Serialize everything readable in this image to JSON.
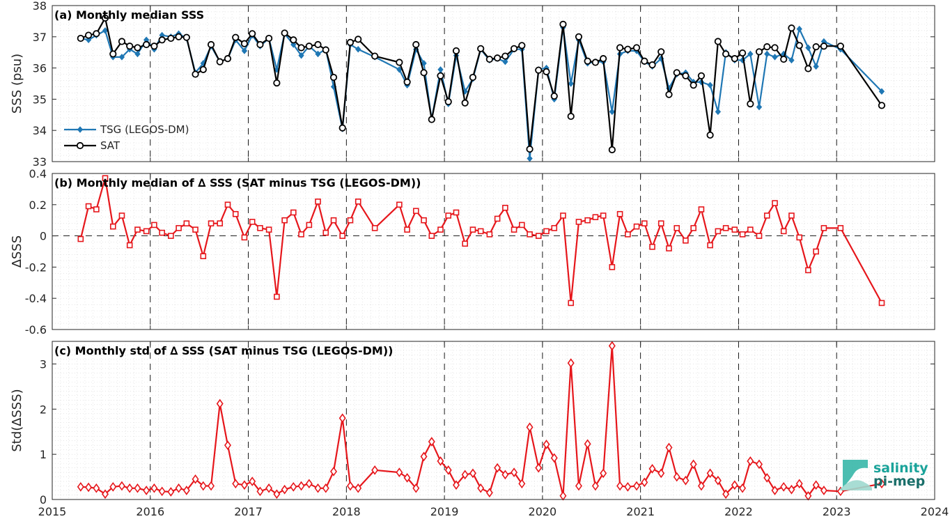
{
  "colors": {
    "tsg": "#1f77b4",
    "sat": "#000000",
    "delta": "#e6161b",
    "logo": "#1aa39a"
  },
  "x_ticks": [
    "2015",
    "2016",
    "2017",
    "2018",
    "2019",
    "2020",
    "2021",
    "2022",
    "2023",
    "2024"
  ],
  "logo": {
    "line1": "salinity",
    "line2": "pi-mep"
  },
  "chart_data": [
    {
      "type": "line",
      "title": "(a) Monthly median SSS",
      "ylabel": "SSS (psu)",
      "xlim": [
        2015,
        2024
      ],
      "ylim": [
        33,
        38
      ],
      "y_ticks": [
        "33",
        "34",
        "35",
        "36",
        "37",
        "38"
      ],
      "grid": true,
      "legend": "bottom-left",
      "x": [
        2015.29,
        2015.37,
        2015.45,
        2015.54,
        2015.62,
        2015.71,
        2015.79,
        2015.87,
        2015.96,
        2016.04,
        2016.12,
        2016.21,
        2016.29,
        2016.37,
        2016.46,
        2016.54,
        2016.62,
        2016.71,
        2016.79,
        2016.87,
        2016.96,
        2017.04,
        2017.12,
        2017.21,
        2017.29,
        2017.37,
        2017.46,
        2017.54,
        2017.62,
        2017.71,
        2017.79,
        2017.87,
        2017.96,
        2018.04,
        2018.12,
        2018.29,
        2018.54,
        2018.62,
        2018.71,
        2018.79,
        2018.87,
        2018.96,
        2019.04,
        2019.12,
        2019.21,
        2019.29,
        2019.37,
        2019.46,
        2019.54,
        2019.62,
        2019.71,
        2019.79,
        2019.87,
        2019.96,
        2020.04,
        2020.12,
        2020.21,
        2020.29,
        2020.37,
        2020.46,
        2020.54,
        2020.62,
        2020.71,
        2020.79,
        2020.87,
        2020.96,
        2021.04,
        2021.12,
        2021.21,
        2021.29,
        2021.37,
        2021.46,
        2021.54,
        2021.62,
        2021.71,
        2021.79,
        2021.87,
        2021.96,
        2022.04,
        2022.12,
        2022.21,
        2022.29,
        2022.37,
        2022.46,
        2022.54,
        2022.62,
        2022.71,
        2022.79,
        2022.87,
        2023.04,
        2023.46
      ],
      "series": [
        {
          "name": "TSG (LEGOS-DM)",
          "color_key": "tsg",
          "marker": "diamond",
          "values": [
            36.95,
            36.9,
            37.05,
            37.2,
            36.35,
            36.35,
            36.6,
            36.45,
            36.9,
            36.6,
            37.05,
            37.0,
            37.1,
            36.95,
            35.85,
            36.15,
            36.7,
            36.2,
            36.3,
            36.9,
            36.55,
            37.05,
            36.7,
            36.95,
            35.95,
            37.1,
            36.75,
            36.4,
            36.7,
            36.45,
            36.6,
            35.4,
            34.05,
            36.75,
            36.6,
            36.35,
            35.95,
            35.45,
            36.6,
            36.15,
            34.35,
            35.95,
            34.85,
            36.4,
            35.25,
            35.65,
            36.6,
            36.25,
            36.3,
            36.2,
            36.6,
            36.6,
            33.1,
            35.95,
            36.0,
            35.0,
            37.3,
            35.5,
            36.9,
            36.15,
            36.2,
            36.2,
            34.6,
            36.45,
            36.55,
            36.55,
            36.2,
            36.05,
            36.3,
            35.35,
            35.8,
            35.85,
            35.55,
            35.55,
            35.45,
            34.6,
            36.5,
            36.25,
            36.25,
            36.45,
            34.75,
            36.45,
            36.35,
            36.45,
            36.25,
            37.25,
            36.65,
            36.05,
            36.85,
            36.6,
            35.25
          ]
        },
        {
          "name": "SAT",
          "color_key": "sat",
          "marker": "circle",
          "values": [
            36.95,
            37.05,
            37.1,
            37.6,
            36.45,
            36.85,
            36.7,
            36.65,
            36.75,
            36.7,
            36.9,
            36.95,
            37.0,
            36.98,
            35.8,
            35.95,
            36.75,
            36.2,
            36.3,
            36.98,
            36.78,
            37.1,
            36.75,
            36.95,
            35.52,
            37.12,
            36.9,
            36.65,
            36.7,
            36.75,
            36.58,
            35.7,
            34.08,
            36.82,
            36.92,
            36.38,
            36.18,
            35.55,
            36.75,
            35.85,
            34.35,
            35.75,
            34.92,
            36.55,
            34.88,
            35.7,
            36.62,
            36.28,
            36.32,
            36.38,
            36.62,
            36.72,
            33.4,
            35.93,
            35.88,
            35.1,
            37.4,
            34.45,
            37.0,
            36.22,
            36.18,
            36.3,
            33.38,
            36.65,
            36.6,
            36.65,
            36.22,
            36.1,
            36.52,
            35.15,
            35.85,
            35.75,
            35.45,
            35.75,
            33.85,
            36.85,
            36.45,
            36.3,
            36.48,
            34.85,
            36.52,
            36.68,
            36.65,
            36.28,
            37.28,
            36.72,
            35.98,
            36.68,
            36.7,
            36.7,
            34.8
          ]
        }
      ]
    },
    {
      "type": "line",
      "title": "(b) Monthly median of ∆ SSS (SAT minus TSG (LEGOS-DM))",
      "ylabel": "∆SSS",
      "xlim": [
        2015,
        2024
      ],
      "ylim": [
        -0.6,
        0.4
      ],
      "y_ticks": [
        "-0.6",
        "-0.4",
        "-0.2",
        "0",
        "0.2",
        "0.4"
      ],
      "zero_line": true,
      "grid": true,
      "x": [
        2015.29,
        2015.37,
        2015.45,
        2015.54,
        2015.62,
        2015.71,
        2015.79,
        2015.87,
        2015.96,
        2016.04,
        2016.12,
        2016.21,
        2016.29,
        2016.37,
        2016.46,
        2016.54,
        2016.62,
        2016.71,
        2016.79,
        2016.87,
        2016.96,
        2017.04,
        2017.12,
        2017.21,
        2017.29,
        2017.37,
        2017.46,
        2017.54,
        2017.62,
        2017.71,
        2017.79,
        2017.87,
        2017.96,
        2018.04,
        2018.12,
        2018.29,
        2018.54,
        2018.62,
        2018.71,
        2018.79,
        2018.87,
        2018.96,
        2019.04,
        2019.12,
        2019.21,
        2019.29,
        2019.37,
        2019.46,
        2019.54,
        2019.62,
        2019.71,
        2019.79,
        2019.87,
        2019.96,
        2020.04,
        2020.12,
        2020.21,
        2020.29,
        2020.37,
        2020.46,
        2020.54,
        2020.62,
        2020.71,
        2020.79,
        2020.87,
        2020.96,
        2021.04,
        2021.12,
        2021.21,
        2021.29,
        2021.37,
        2021.46,
        2021.54,
        2021.62,
        2021.71,
        2021.79,
        2021.87,
        2021.96,
        2022.04,
        2022.12,
        2022.21,
        2022.29,
        2022.37,
        2022.46,
        2022.54,
        2022.62,
        2022.71,
        2022.79,
        2022.87,
        2023.04,
        2023.46
      ],
      "series": [
        {
          "marker": "square",
          "color_key": "delta",
          "values": [
            -0.02,
            0.19,
            0.17,
            0.37,
            0.06,
            0.13,
            -0.06,
            0.04,
            0.03,
            0.07,
            0.02,
            0.0,
            0.05,
            0.08,
            0.04,
            -0.13,
            0.08,
            0.08,
            0.2,
            0.14,
            -0.01,
            0.09,
            0.05,
            0.04,
            -0.39,
            0.1,
            0.15,
            0.01,
            0.07,
            0.22,
            0.02,
            0.1,
            0.0,
            0.1,
            0.22,
            0.05,
            0.2,
            0.04,
            0.16,
            0.1,
            0.0,
            0.04,
            0.13,
            0.15,
            -0.05,
            0.04,
            0.03,
            0.01,
            0.11,
            0.18,
            0.04,
            0.07,
            0.01,
            0.0,
            0.03,
            0.05,
            0.13,
            -0.43,
            0.09,
            0.1,
            0.12,
            0.13,
            -0.2,
            0.14,
            0.01,
            0.06,
            0.08,
            -0.07,
            0.08,
            -0.08,
            0.05,
            -0.03,
            0.05,
            0.17,
            -0.06,
            0.03,
            0.05,
            0.04,
            0.01,
            0.04,
            0.0,
            0.13,
            0.21,
            0.03,
            0.13,
            -0.01,
            -0.22,
            -0.1,
            0.05,
            0.05,
            -0.43
          ]
        }
      ]
    },
    {
      "type": "line",
      "title": "(c) Monthly std of ∆ SSS (SAT minus TSG (LEGOS-DM))",
      "ylabel": "Std(∆SSS)",
      "xlim": [
        2015,
        2024
      ],
      "ylim": [
        0,
        3.5
      ],
      "y_ticks": [
        "0",
        "1",
        "2",
        "3"
      ],
      "grid": true,
      "x": [
        2015.29,
        2015.37,
        2015.45,
        2015.54,
        2015.62,
        2015.71,
        2015.79,
        2015.87,
        2015.96,
        2016.04,
        2016.12,
        2016.21,
        2016.29,
        2016.37,
        2016.46,
        2016.54,
        2016.62,
        2016.71,
        2016.79,
        2016.87,
        2016.96,
        2017.04,
        2017.12,
        2017.21,
        2017.29,
        2017.37,
        2017.46,
        2017.54,
        2017.62,
        2017.71,
        2017.79,
        2017.87,
        2017.96,
        2018.04,
        2018.12,
        2018.29,
        2018.54,
        2018.62,
        2018.71,
        2018.79,
        2018.87,
        2018.96,
        2019.04,
        2019.12,
        2019.21,
        2019.29,
        2019.37,
        2019.46,
        2019.54,
        2019.62,
        2019.71,
        2019.79,
        2019.87,
        2019.96,
        2020.04,
        2020.12,
        2020.21,
        2020.29,
        2020.37,
        2020.46,
        2020.54,
        2020.62,
        2020.71,
        2020.79,
        2020.87,
        2020.96,
        2021.04,
        2021.12,
        2021.21,
        2021.29,
        2021.37,
        2021.46,
        2021.54,
        2021.62,
        2021.71,
        2021.79,
        2021.87,
        2021.96,
        2022.04,
        2022.12,
        2022.21,
        2022.29,
        2022.37,
        2022.46,
        2022.54,
        2022.62,
        2022.71,
        2022.79,
        2022.87,
        2023.04,
        2023.46
      ],
      "series": [
        {
          "marker": "diamond-open",
          "color_key": "delta",
          "values": [
            0.28,
            0.27,
            0.25,
            0.12,
            0.28,
            0.3,
            0.25,
            0.25,
            0.2,
            0.25,
            0.18,
            0.17,
            0.25,
            0.2,
            0.45,
            0.3,
            0.3,
            2.12,
            1.2,
            0.35,
            0.32,
            0.4,
            0.18,
            0.25,
            0.12,
            0.22,
            0.28,
            0.3,
            0.35,
            0.25,
            0.25,
            0.62,
            1.8,
            0.3,
            0.25,
            0.65,
            0.6,
            0.48,
            0.25,
            0.95,
            1.28,
            0.85,
            0.65,
            0.32,
            0.55,
            0.58,
            0.25,
            0.15,
            0.7,
            0.55,
            0.6,
            0.35,
            1.6,
            0.7,
            1.22,
            0.92,
            0.08,
            3.02,
            0.3,
            1.23,
            0.3,
            0.58,
            3.4,
            0.3,
            0.28,
            0.3,
            0.38,
            0.68,
            0.58,
            1.15,
            0.5,
            0.42,
            0.78,
            0.3,
            0.58,
            0.42,
            0.12,
            0.32,
            0.25,
            0.85,
            0.78,
            0.48,
            0.2,
            0.28,
            0.22,
            0.35,
            0.08,
            0.32,
            0.2,
            0.18,
            0.35
          ]
        }
      ]
    }
  ]
}
